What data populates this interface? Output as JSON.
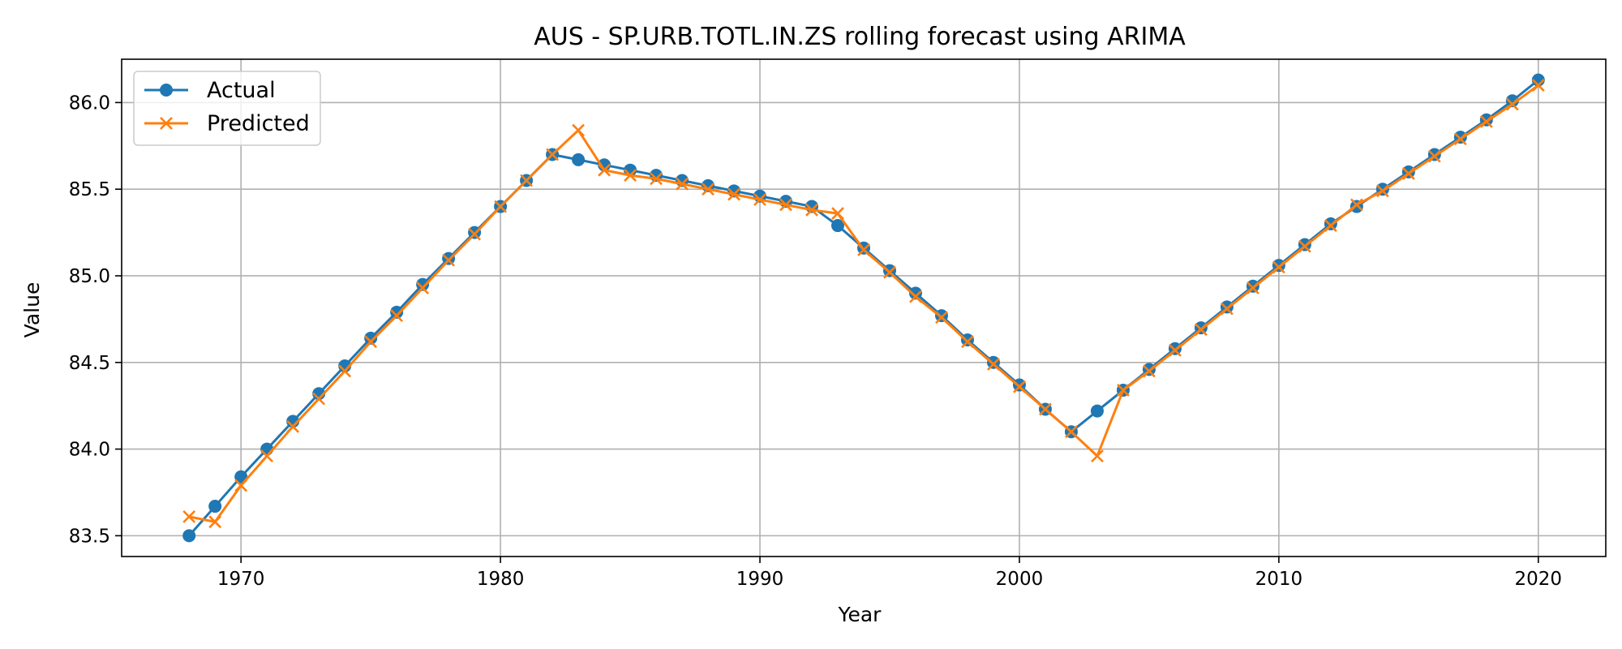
{
  "chart_data": {
    "type": "line",
    "title": "AUS - SP.URB.TOTL.IN.ZS rolling forecast using ARIMA",
    "xlabel": "Year",
    "ylabel": "Value",
    "xlim": [
      1965.4,
      2022.6
    ],
    "ylim": [
      83.38,
      86.25
    ],
    "xticks": [
      1970,
      1980,
      1990,
      2000,
      2010,
      2020
    ],
    "yticks": [
      83.5,
      84.0,
      84.5,
      85.0,
      85.5,
      86.0
    ],
    "grid": true,
    "legend_position": "top-left",
    "x": [
      1968,
      1969,
      1970,
      1971,
      1972,
      1973,
      1974,
      1975,
      1976,
      1977,
      1978,
      1979,
      1980,
      1981,
      1982,
      1983,
      1984,
      1985,
      1986,
      1987,
      1988,
      1989,
      1990,
      1991,
      1992,
      1993,
      1994,
      1995,
      1996,
      1997,
      1998,
      1999,
      2000,
      2001,
      2002,
      2003,
      2004,
      2005,
      2006,
      2007,
      2008,
      2009,
      2010,
      2011,
      2012,
      2013,
      2014,
      2015,
      2016,
      2017,
      2018,
      2019,
      2020
    ],
    "series": [
      {
        "name": "Actual",
        "color": "#1f77b4",
        "marker": "circle",
        "values": [
          83.5,
          83.67,
          83.84,
          84.0,
          84.16,
          84.32,
          84.48,
          84.64,
          84.79,
          84.95,
          85.1,
          85.25,
          85.4,
          85.55,
          85.7,
          85.67,
          85.64,
          85.61,
          85.58,
          85.55,
          85.52,
          85.49,
          85.46,
          85.43,
          85.4,
          85.29,
          85.16,
          85.03,
          84.9,
          84.77,
          84.63,
          84.5,
          84.37,
          84.23,
          84.1,
          84.22,
          84.34,
          84.46,
          84.58,
          84.7,
          84.82,
          84.94,
          85.06,
          85.18,
          85.3,
          85.4,
          85.5,
          85.6,
          85.7,
          85.8,
          85.9,
          86.01,
          86.13
        ]
      },
      {
        "name": "Predicted",
        "color": "#ff7f0e",
        "marker": "x",
        "values": [
          83.61,
          83.58,
          83.79,
          83.96,
          84.13,
          84.29,
          84.45,
          84.62,
          84.77,
          84.93,
          85.09,
          85.24,
          85.4,
          85.55,
          85.7,
          85.84,
          85.61,
          85.58,
          85.56,
          85.53,
          85.5,
          85.47,
          85.44,
          85.41,
          85.38,
          85.36,
          85.15,
          85.02,
          84.88,
          84.76,
          84.62,
          84.49,
          84.36,
          84.23,
          84.1,
          83.96,
          84.34,
          84.45,
          84.57,
          84.69,
          84.81,
          84.93,
          85.05,
          85.17,
          85.29,
          85.41,
          85.49,
          85.59,
          85.69,
          85.79,
          85.89,
          85.99,
          86.1
        ]
      }
    ]
  }
}
